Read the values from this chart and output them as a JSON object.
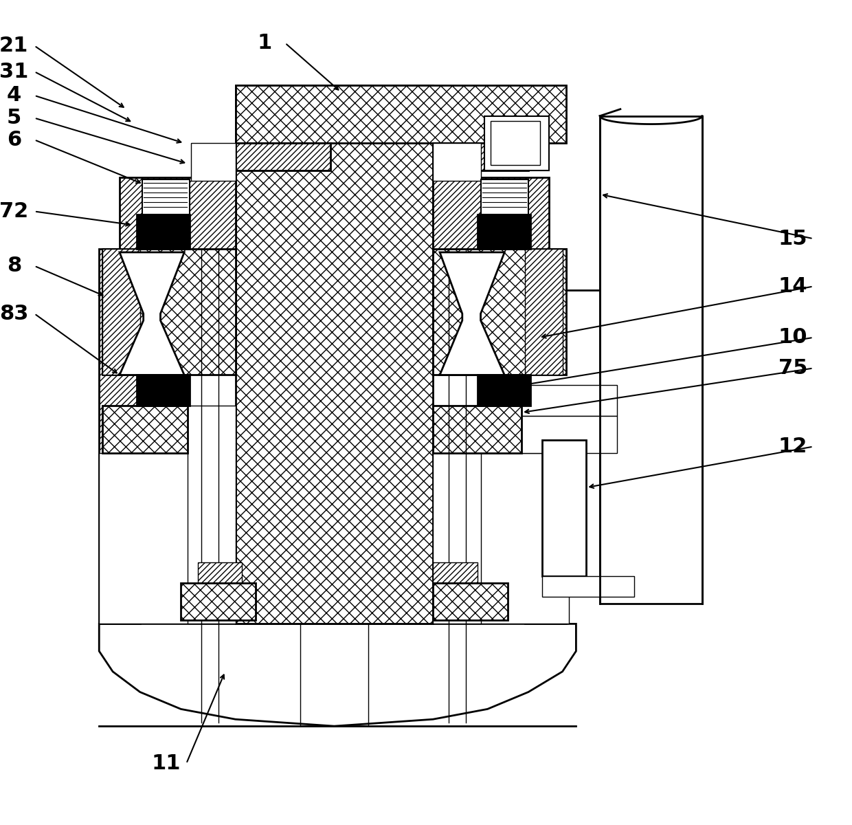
{
  "bg_color": "#ffffff",
  "line_color": "#000000",
  "figsize": [
    12.4,
    12.0
  ],
  "dpi": 100,
  "leaders": [
    [
      "1",
      400,
      58,
      490,
      130
    ],
    [
      "21",
      32,
      62,
      175,
      155
    ],
    [
      "31",
      32,
      100,
      185,
      175
    ],
    [
      "4",
      32,
      135,
      260,
      205
    ],
    [
      "5",
      32,
      168,
      265,
      235
    ],
    [
      "6",
      32,
      200,
      200,
      265
    ],
    [
      "72",
      32,
      305,
      185,
      325
    ],
    [
      "8",
      32,
      385,
      145,
      430
    ],
    [
      "83",
      32,
      455,
      165,
      545
    ],
    [
      "15",
      1175,
      345,
      870,
      280
    ],
    [
      "14",
      1175,
      415,
      780,
      490
    ],
    [
      "10",
      1175,
      490,
      755,
      560
    ],
    [
      "75",
      1175,
      535,
      755,
      600
    ],
    [
      "12",
      1175,
      650,
      850,
      710
    ],
    [
      "11",
      255,
      1115,
      320,
      980
    ]
  ]
}
